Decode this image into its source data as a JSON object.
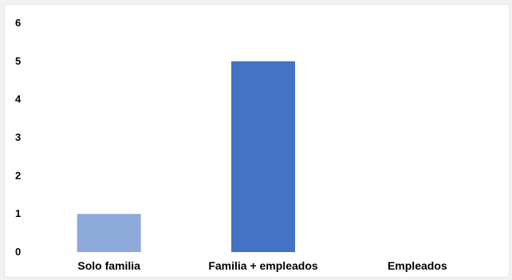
{
  "chart_data": {
    "type": "bar",
    "categories": [
      "Solo familia",
      "Familia + empleados",
      "Empleados"
    ],
    "values": [
      1,
      5,
      0
    ],
    "colors": [
      "#8eaadb",
      "#4472c4",
      "#4472c4"
    ],
    "yticks": [
      "0",
      "1",
      "2",
      "3",
      "4",
      "5",
      "6"
    ],
    "ylim": [
      0,
      6
    ],
    "title": "",
    "xlabel": "",
    "ylabel": "",
    "grid": false,
    "legend": "none"
  }
}
